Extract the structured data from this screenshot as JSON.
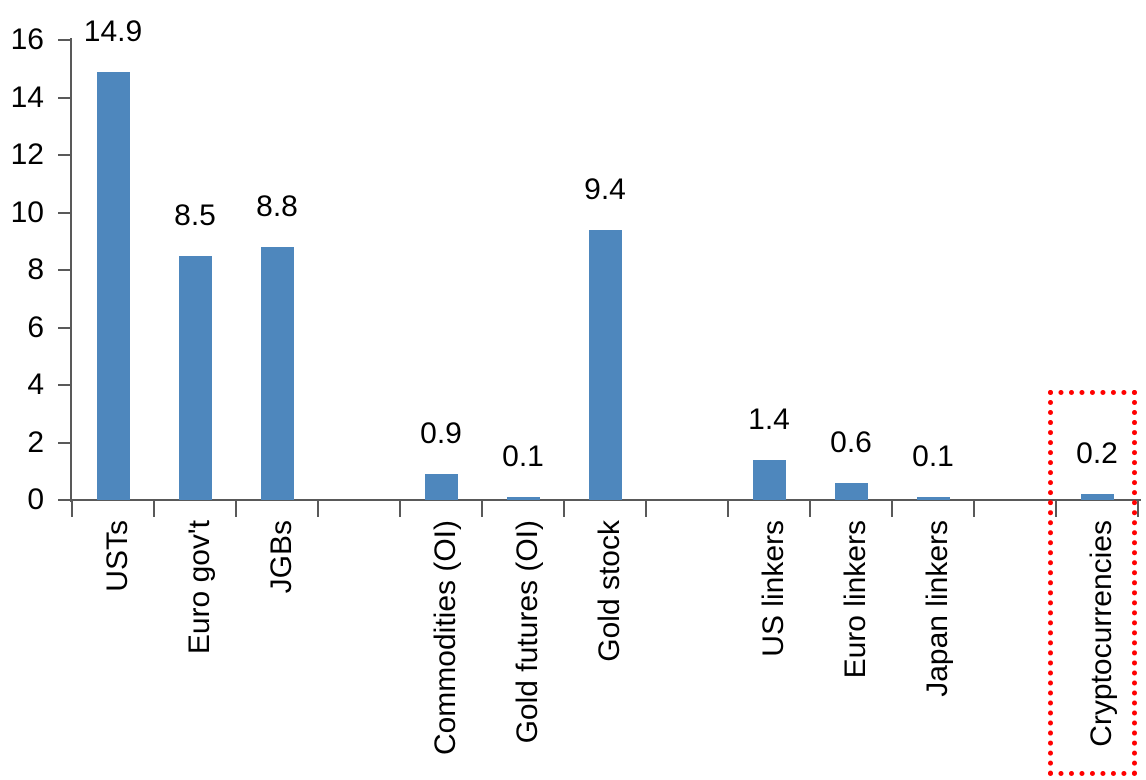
{
  "chart_data": {
    "type": "bar",
    "title": "",
    "xlabel": "",
    "ylabel": "",
    "categories": [
      "USTs",
      "Euro gov't",
      "JGBs",
      "Commodities (OI)",
      "Gold futures (OI)",
      "Gold stock",
      "US linkers",
      "Euro linkers",
      "Japan linkers",
      "Cryptocurrencies"
    ],
    "values": [
      14.9,
      8.5,
      8.8,
      0.9,
      0.1,
      9.4,
      1.4,
      0.6,
      0.1,
      0.2
    ],
    "data_labels": [
      "14.9",
      "8.5",
      "8.8",
      "0.9",
      "0.1",
      "9.4",
      "1.4",
      "0.6",
      "0.1",
      "0.2"
    ],
    "slots": [
      0,
      1,
      2,
      4,
      5,
      6,
      8,
      9,
      10,
      12
    ],
    "slot_count": 13,
    "ylim": [
      0,
      16
    ],
    "y_ticks": [
      "16",
      "14",
      "12",
      "10",
      "8",
      "6",
      "4",
      "2",
      "0"
    ],
    "grid": false,
    "legend": false,
    "bar_color": "#4E87BD",
    "axis_color": "#595959",
    "text_color": "#000000",
    "highlight": {
      "category": "Cryptocurrencies",
      "style": "red-dotted-box",
      "color": "#FF0000"
    }
  }
}
